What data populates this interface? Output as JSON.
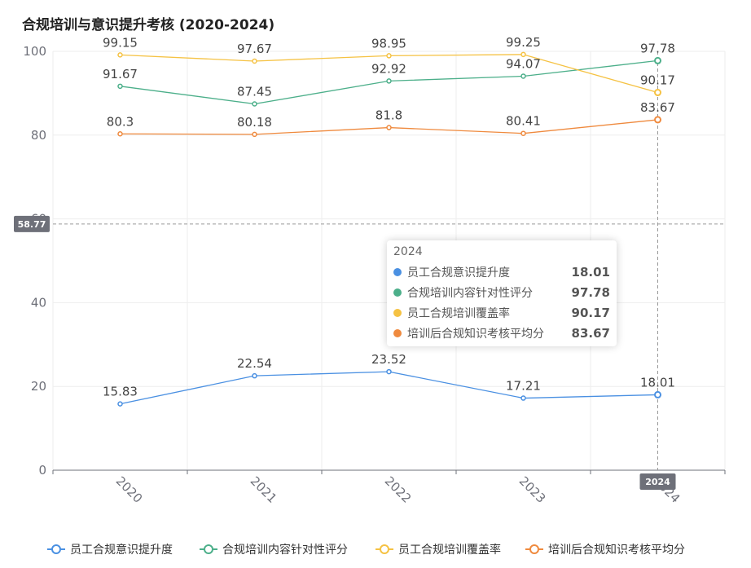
{
  "chart_data": {
    "type": "line",
    "title": "合规培训与意识提升考核 (2020-2024)",
    "categories": [
      "2020",
      "2021",
      "2022",
      "2023",
      "2024"
    ],
    "ylim": [
      0,
      100
    ],
    "yticks": [
      "0",
      "20",
      "40",
      "60",
      "80",
      "100"
    ],
    "series": [
      {
        "name": "员工合规意识提升度",
        "color": "#4a90e2",
        "values": [
          15.83,
          22.54,
          23.52,
          17.21,
          18.01
        ]
      },
      {
        "name": "合规培训内容针对性评分",
        "color": "#4caf8a",
        "values": [
          91.67,
          87.45,
          92.92,
          94.07,
          97.78
        ]
      },
      {
        "name": "员工合规培训覆盖率",
        "color": "#f5c243",
        "values": [
          99.15,
          97.67,
          98.95,
          99.25,
          90.17
        ]
      },
      {
        "name": "培训后合规知识考核平均分",
        "color": "#ef8a3e",
        "values": [
          80.3,
          80.18,
          81.8,
          80.41,
          83.67
        ]
      }
    ],
    "legend_position": "bottom",
    "grid": true
  },
  "axis_pointer": {
    "y_value": 58.77,
    "y_label": "58.77",
    "x_label": "2024"
  },
  "tooltip": {
    "header": "2024",
    "rows": [
      {
        "name": "员工合规意识提升度",
        "value": "18.01",
        "color": "#4a90e2"
      },
      {
        "name": "合规培训内容针对性评分",
        "value": "97.78",
        "color": "#4caf8a"
      },
      {
        "name": "员工合规培训覆盖率",
        "value": "90.17",
        "color": "#f5c243"
      },
      {
        "name": "培训后合规知识考核平均分",
        "value": "83.67",
        "color": "#ef8a3e"
      }
    ]
  }
}
